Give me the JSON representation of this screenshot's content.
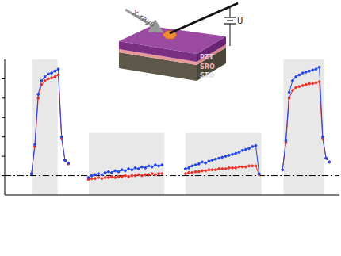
{
  "chart_data": {
    "type": "line",
    "annotations": [
      "X-rays",
      "PZT",
      "SRO",
      "STO",
      "U"
    ],
    "tick_labels": false,
    "xlim": [
      0,
      100
    ],
    "ylim": [
      -1,
      6
    ],
    "yticks": [
      0,
      1,
      2,
      3,
      4,
      5
    ],
    "baseline": 0,
    "shaded_regions": [
      {
        "x": [
          8.1,
          15.8
        ]
      },
      {
        "x": [
          25.1,
          47.7
        ],
        "y": [
          -1,
          2.2
        ]
      },
      {
        "x": [
          54,
          76.7
        ],
        "y": [
          -1,
          2.2
        ]
      },
      {
        "x": [
          83.3,
          95.3
        ]
      }
    ],
    "x": [
      8,
      9,
      10,
      11,
      12,
      13,
      14,
      15,
      16,
      17,
      18,
      19,
      20,
      21,
      22,
      23,
      24,
      25,
      26,
      27,
      28,
      29,
      30,
      31,
      32,
      33,
      34,
      35,
      36,
      37,
      38,
      39,
      40,
      41,
      42,
      43,
      44,
      45,
      46,
      47,
      48,
      49,
      50,
      51,
      52,
      53,
      54,
      55,
      56,
      57,
      58,
      59,
      60,
      61,
      62,
      63,
      64,
      65,
      66,
      67,
      68,
      69,
      70,
      71,
      72,
      73,
      74,
      75,
      76,
      77,
      78,
      79,
      80,
      81,
      82,
      83,
      84,
      85,
      86,
      87,
      88,
      89,
      90,
      91,
      92,
      93,
      94,
      95,
      96,
      97
    ],
    "series": [
      {
        "color": "#e8322b",
        "marker": "o",
        "values": [
          0.1,
          1.5,
          4.0,
          4.7,
          4.9,
          5.0,
          5.05,
          5.1,
          5.2,
          1.9,
          0.8,
          0.6,
          null,
          null,
          null,
          null,
          null,
          -0.2,
          -0.15,
          -0.15,
          -0.1,
          -0.15,
          -0.1,
          -0.1,
          -0.05,
          -0.1,
          -0.05,
          -0.05,
          0.0,
          -0.05,
          0.0,
          0.0,
          0.05,
          0.0,
          0.05,
          0.05,
          0.1,
          0.05,
          0.1,
          0.1,
          null,
          null,
          null,
          null,
          null,
          null,
          0.1,
          0.15,
          0.15,
          0.2,
          0.2,
          0.25,
          0.25,
          0.3,
          0.3,
          0.3,
          0.35,
          0.35,
          0.35,
          0.4,
          0.4,
          0.4,
          0.45,
          0.45,
          0.45,
          0.5,
          0.5,
          0.5,
          0.05,
          null,
          null,
          null,
          null,
          null,
          null,
          0.3,
          1.7,
          4.0,
          4.4,
          4.55,
          4.6,
          4.65,
          4.7,
          4.75,
          4.75,
          4.8,
          4.85,
          1.9,
          0.9,
          0.7
        ]
      },
      {
        "color": "#2346e6",
        "marker": "o",
        "values": [
          0.1,
          1.6,
          4.2,
          4.9,
          5.1,
          5.25,
          5.3,
          5.4,
          5.5,
          2.0,
          0.8,
          0.65,
          null,
          null,
          null,
          null,
          null,
          -0.1,
          0.0,
          0.05,
          0.1,
          0.05,
          0.15,
          0.2,
          0.15,
          0.25,
          0.2,
          0.3,
          0.25,
          0.35,
          0.3,
          0.4,
          0.35,
          0.45,
          0.4,
          0.5,
          0.45,
          0.55,
          0.5,
          0.55,
          null,
          null,
          null,
          null,
          null,
          null,
          0.35,
          0.4,
          0.5,
          0.55,
          0.6,
          0.7,
          0.65,
          0.75,
          0.8,
          0.85,
          0.9,
          0.95,
          1.0,
          1.05,
          1.1,
          1.15,
          1.2,
          1.3,
          1.35,
          1.4,
          1.5,
          1.55,
          0.1,
          null,
          null,
          null,
          null,
          null,
          null,
          0.3,
          1.8,
          4.3,
          4.9,
          5.1,
          5.2,
          5.3,
          5.35,
          5.4,
          5.45,
          5.5,
          5.6,
          2.0,
          0.9,
          0.7
        ]
      }
    ]
  }
}
